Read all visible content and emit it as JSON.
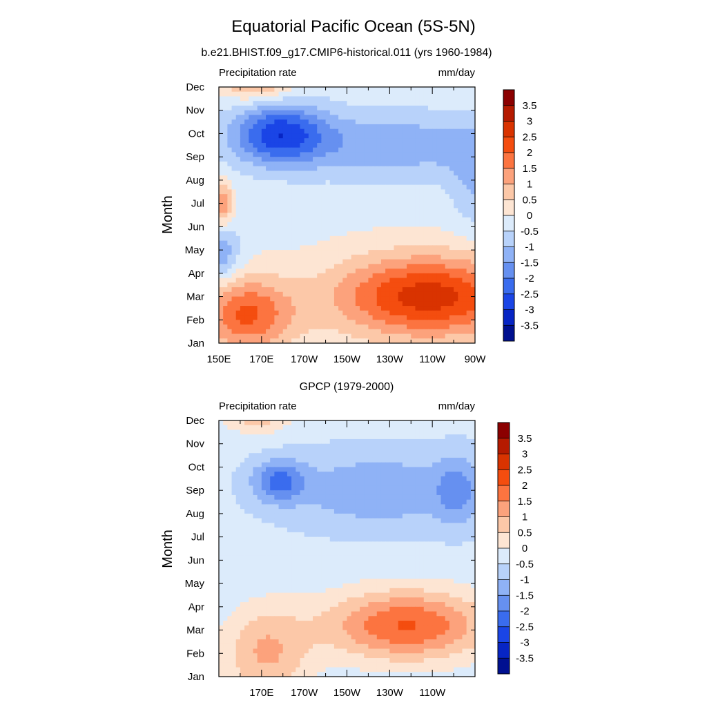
{
  "figure": {
    "title": "Equatorial Pacific Ocean (5S-5N)"
  },
  "chart_data": [
    {
      "type": "heatmap",
      "title": "b.e21.BHIST.f09_g17.CMIP6-historical.011 (yrs 1960-1984)",
      "left_label": "Precipitation rate",
      "right_label": "mm/day",
      "ylabel": "Month",
      "xlabel": "",
      "x_tick_labels": [
        "150E",
        "170E",
        "170W",
        "150W",
        "130W",
        "110W",
        "90W"
      ],
      "x_tick_values": [
        150,
        170,
        190,
        210,
        230,
        250,
        270
      ],
      "xlim": [
        150,
        270
      ],
      "y_tick_labels": [
        "Jan",
        "Feb",
        "Mar",
        "Apr",
        "May",
        "Jun",
        "Jul",
        "Aug",
        "Sep",
        "Oct",
        "Nov",
        "Dec"
      ],
      "ylim": [
        1,
        12
      ],
      "colorbar": {
        "labels": [
          "3.5",
          "3",
          "2.5",
          "2",
          "1.5",
          "1",
          "0.5",
          "0",
          "-0.5",
          "-1",
          "-1.5",
          "-2",
          "-2.5",
          "-3",
          "-3.5"
        ],
        "colors": [
          "#8b0000",
          "#b51a00",
          "#d93300",
          "#f44d0f",
          "#fc7440",
          "#fca27c",
          "#fcc8a8",
          "#fde5d3",
          "#dcebfb",
          "#b8d2fa",
          "#8fb2f6",
          "#6690f0",
          "#3a6cee",
          "#1a45e6",
          "#0725c4",
          "#001090"
        ]
      },
      "features": [
        {
          "name": "dry-band",
          "x": 230,
          "y": 9.5,
          "rx": 55,
          "ry": 1.5,
          "v": -1.2
        },
        {
          "name": "dry-core",
          "x": 178,
          "y": 10.0,
          "rx": 22,
          "ry": 1.3,
          "v": -2.4
        },
        {
          "name": "dry-east-edge",
          "x": 270,
          "y": 8.0,
          "rx": 12,
          "ry": 2.2,
          "v": -0.8
        },
        {
          "name": "dry-west-low",
          "x": 152,
          "y": 4.8,
          "rx": 8,
          "ry": 1.2,
          "v": -1.2
        },
        {
          "name": "wet-south-east",
          "x": 248,
          "y": 3.0,
          "rx": 45,
          "ry": 1.8,
          "v": 2.9
        },
        {
          "name": "wet-west-low",
          "x": 163,
          "y": 2.2,
          "rx": 22,
          "ry": 1.6,
          "v": 2.2
        },
        {
          "name": "wet-west-jul",
          "x": 152,
          "y": 7.0,
          "rx": 4,
          "ry": 0.9,
          "v": 1.7
        },
        {
          "name": "wet-west-dec",
          "x": 168,
          "y": 12.4,
          "rx": 16,
          "ry": 0.9,
          "v": 1.8
        }
      ],
      "base_value": -0.15
    },
    {
      "type": "heatmap",
      "title": "GPCP (1979-2000)",
      "left_label": "Precipitation rate",
      "right_label": "mm/day",
      "ylabel": "Month",
      "xlabel": "",
      "x_tick_labels": [
        "170E",
        "170W",
        "150W",
        "130W",
        "110W"
      ],
      "x_tick_values": [
        170,
        190,
        210,
        230,
        250
      ],
      "xlim": [
        150,
        270
      ],
      "y_tick_labels": [
        "Jan",
        "Feb",
        "Mar",
        "Apr",
        "May",
        "Jun",
        "Jul",
        "Aug",
        "Sep",
        "Oct",
        "Nov",
        "Dec"
      ],
      "ylim": [
        1,
        12
      ],
      "colorbar": {
        "labels": [
          "3.5",
          "3",
          "2.5",
          "2",
          "1.5",
          "1",
          "0.5",
          "0",
          "-0.5",
          "-1",
          "-1.5",
          "-2",
          "-2.5",
          "-3",
          "-3.5"
        ],
        "colors": [
          "#8b0000",
          "#b51a00",
          "#d93300",
          "#f44d0f",
          "#fc7440",
          "#fca27c",
          "#fcc8a8",
          "#fde5d3",
          "#dcebfb",
          "#b8d2fa",
          "#8fb2f6",
          "#6690f0",
          "#3a6cee",
          "#1a45e6",
          "#0725c4",
          "#001090"
        ]
      },
      "features": [
        {
          "name": "dry-band",
          "x": 225,
          "y": 9.0,
          "rx": 45,
          "ry": 1.6,
          "v": -1.1
        },
        {
          "name": "dry-core",
          "x": 178,
          "y": 9.4,
          "rx": 12,
          "ry": 0.9,
          "v": -1.6
        },
        {
          "name": "dry-east",
          "x": 262,
          "y": 9.0,
          "rx": 10,
          "ry": 1.5,
          "v": -1.0
        },
        {
          "name": "wet-south-east",
          "x": 238,
          "y": 3.2,
          "rx": 38,
          "ry": 1.5,
          "v": 2.4
        },
        {
          "name": "wet-west-low",
          "x": 172,
          "y": 2.0,
          "rx": 20,
          "ry": 2.0,
          "v": 1.4
        },
        {
          "name": "wet-west-dec",
          "x": 168,
          "y": 12.4,
          "rx": 15,
          "ry": 0.9,
          "v": 1.4
        }
      ],
      "base_value": -0.35
    }
  ]
}
